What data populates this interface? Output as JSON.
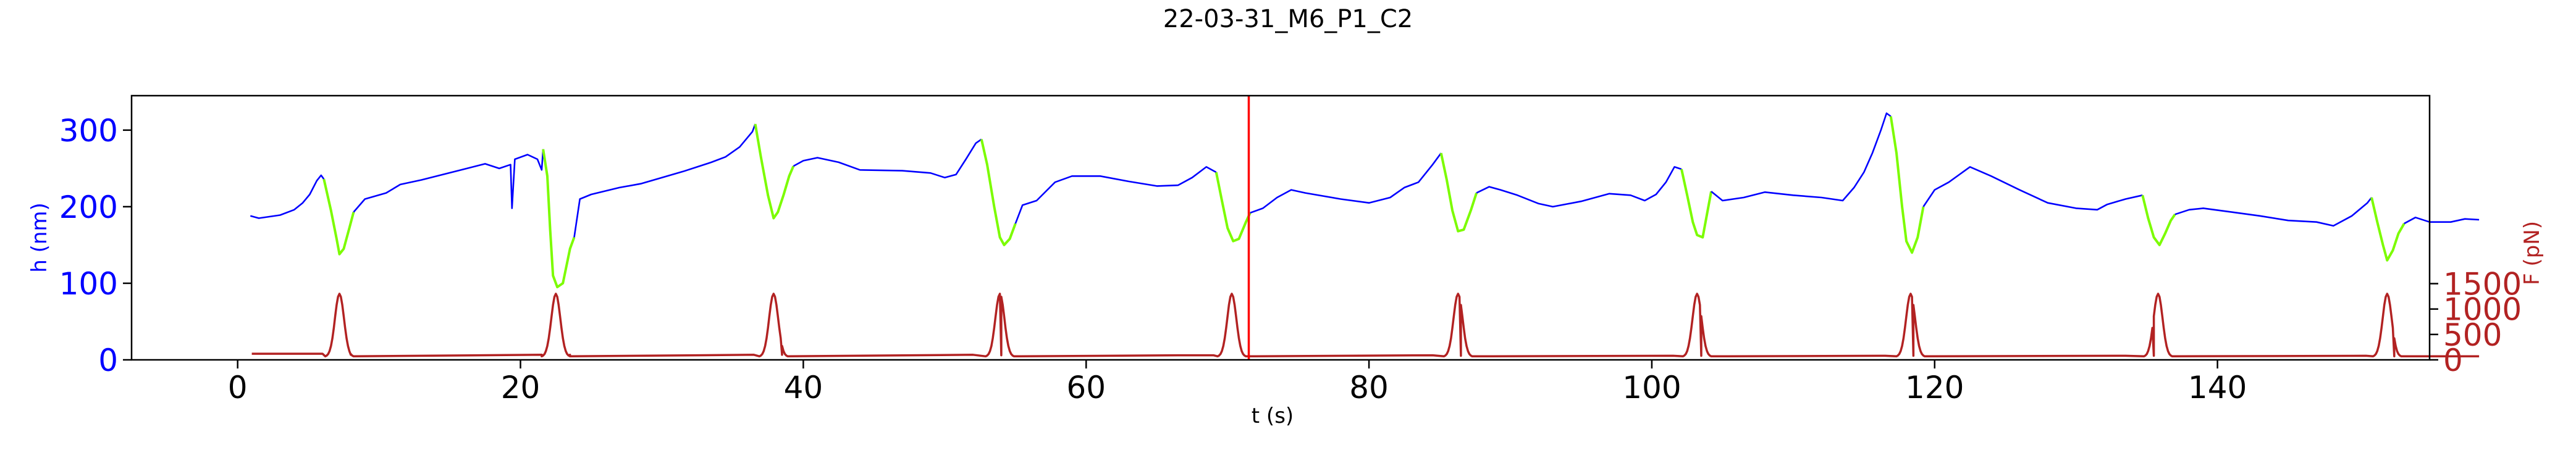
{
  "chart_data": {
    "type": "line",
    "title": "22-03-31_M6_P1_C2",
    "xlabel": "t (s)",
    "ylabel_left": "h (nm)",
    "ylabel_right": "F (pN)",
    "xlim": [
      -7.5,
      155
    ],
    "ylim_left": [
      0,
      345
    ],
    "ylim_right": [
      0,
      5200
    ],
    "xticks": [
      0,
      20,
      40,
      60,
      80,
      100,
      120,
      140
    ],
    "yticks_left": [
      0,
      100,
      200,
      300
    ],
    "yticks_right": [
      0,
      500,
      1000,
      1500
    ],
    "grid": false,
    "vline_x": 71.5,
    "colors": {
      "height_low_force": "#0000ff",
      "height_high_force": "#7cfc00",
      "force": "#b22222",
      "vline": "#ff0000",
      "left_axis": "#0000ff",
      "right_axis": "#b22222"
    },
    "height_segments": [
      {
        "phase": "low",
        "points": [
          [
            0.9,
            188
          ],
          [
            1.5,
            185
          ],
          [
            3,
            189
          ],
          [
            4,
            196
          ],
          [
            4.6,
            205
          ],
          [
            5.1,
            216
          ],
          [
            5.6,
            234
          ],
          [
            5.9,
            241
          ],
          [
            6.1,
            236
          ]
        ]
      },
      {
        "phase": "high",
        "points": [
          [
            6.1,
            236
          ],
          [
            6.6,
            195
          ],
          [
            7.0,
            158
          ],
          [
            7.2,
            138
          ],
          [
            7.5,
            145
          ],
          [
            7.9,
            172
          ],
          [
            8.2,
            193
          ]
        ]
      },
      {
        "phase": "low",
        "points": [
          [
            8.2,
            193
          ],
          [
            9,
            210
          ],
          [
            10.5,
            218
          ],
          [
            11.5,
            229
          ],
          [
            13,
            235
          ],
          [
            16,
            249
          ],
          [
            17.5,
            256
          ],
          [
            18.5,
            250
          ],
          [
            19.3,
            255
          ],
          [
            19.4,
            198
          ],
          [
            19.6,
            262
          ],
          [
            20.5,
            268
          ],
          [
            21.2,
            262
          ],
          [
            21.5,
            248
          ],
          [
            21.6,
            275
          ]
        ]
      },
      {
        "phase": "high",
        "points": [
          [
            21.6,
            275
          ],
          [
            21.9,
            240
          ],
          [
            22.1,
            170
          ],
          [
            22.3,
            110
          ],
          [
            22.6,
            95
          ],
          [
            23.0,
            100
          ],
          [
            23.5,
            145
          ],
          [
            23.8,
            160
          ]
        ]
      },
      {
        "phase": "low",
        "points": [
          [
            23.8,
            160
          ],
          [
            24.2,
            210
          ],
          [
            25,
            216
          ],
          [
            27,
            225
          ],
          [
            28.5,
            230
          ],
          [
            30,
            238
          ],
          [
            31.5,
            246
          ],
          [
            32.5,
            252
          ],
          [
            33.5,
            258
          ],
          [
            34.5,
            265
          ],
          [
            35.5,
            278
          ],
          [
            36.4,
            298
          ],
          [
            36.6,
            308
          ]
        ]
      },
      {
        "phase": "high",
        "points": [
          [
            36.6,
            308
          ],
          [
            37.0,
            265
          ],
          [
            37.5,
            215
          ],
          [
            37.9,
            185
          ],
          [
            38.2,
            193
          ],
          [
            38.6,
            215
          ],
          [
            39.0,
            240
          ],
          [
            39.3,
            253
          ]
        ]
      },
      {
        "phase": "low",
        "points": [
          [
            39.3,
            253
          ],
          [
            40,
            260
          ],
          [
            41,
            264
          ],
          [
            42.5,
            258
          ],
          [
            44,
            248
          ],
          [
            47,
            247
          ],
          [
            49,
            244
          ],
          [
            50,
            238
          ],
          [
            50.8,
            242
          ],
          [
            51.5,
            262
          ],
          [
            52.2,
            283
          ],
          [
            52.6,
            288
          ]
        ]
      },
      {
        "phase": "high",
        "points": [
          [
            52.6,
            288
          ],
          [
            53.0,
            255
          ],
          [
            53.5,
            200
          ],
          [
            53.9,
            160
          ],
          [
            54.2,
            150
          ],
          [
            54.6,
            158
          ],
          [
            55.0,
            178
          ]
        ]
      },
      {
        "phase": "low",
        "points": [
          [
            55.0,
            178
          ],
          [
            55.5,
            202
          ],
          [
            56.5,
            208
          ],
          [
            57.8,
            232
          ],
          [
            59,
            240
          ],
          [
            61,
            240
          ],
          [
            63,
            233
          ],
          [
            65,
            227
          ],
          [
            66.5,
            228
          ],
          [
            67.5,
            238
          ],
          [
            68.5,
            252
          ],
          [
            69.2,
            245
          ]
        ]
      },
      {
        "phase": "high",
        "points": [
          [
            69.2,
            245
          ],
          [
            69.6,
            208
          ],
          [
            70.0,
            172
          ],
          [
            70.4,
            155
          ],
          [
            70.8,
            158
          ],
          [
            71.3,
            180
          ],
          [
            71.6,
            192
          ]
        ]
      },
      {
        "phase": "low",
        "points": [
          [
            71.6,
            192
          ],
          [
            72.5,
            198
          ],
          [
            73.5,
            212
          ],
          [
            74.5,
            222
          ],
          [
            75.5,
            218
          ],
          [
            78,
            210
          ],
          [
            80,
            205
          ],
          [
            81.5,
            212
          ],
          [
            82.5,
            225
          ],
          [
            83.5,
            232
          ],
          [
            84.5,
            255
          ],
          [
            85.1,
            270
          ]
        ]
      },
      {
        "phase": "high",
        "points": [
          [
            85.1,
            270
          ],
          [
            85.5,
            235
          ],
          [
            85.9,
            195
          ],
          [
            86.3,
            168
          ],
          [
            86.7,
            170
          ],
          [
            87.2,
            195
          ],
          [
            87.6,
            218
          ]
        ]
      },
      {
        "phase": "low",
        "points": [
          [
            87.6,
            218
          ],
          [
            88.5,
            226
          ],
          [
            89.3,
            222
          ],
          [
            90.5,
            215
          ],
          [
            92,
            204
          ],
          [
            93,
            200
          ],
          [
            95,
            207
          ],
          [
            97,
            217
          ],
          [
            98.5,
            215
          ],
          [
            99.5,
            208
          ],
          [
            100.3,
            216
          ],
          [
            101,
            232
          ],
          [
            101.6,
            252
          ],
          [
            102.1,
            249
          ]
        ]
      },
      {
        "phase": "high",
        "points": [
          [
            102.1,
            249
          ],
          [
            102.5,
            215
          ],
          [
            102.9,
            180
          ],
          [
            103.2,
            163
          ],
          [
            103.6,
            160
          ],
          [
            103.9,
            190
          ],
          [
            104.2,
            220
          ]
        ]
      },
      {
        "phase": "low",
        "points": [
          [
            104.2,
            220
          ],
          [
            105,
            208
          ],
          [
            106.5,
            212
          ],
          [
            108,
            219
          ],
          [
            110,
            215
          ],
          [
            112,
            212
          ],
          [
            113.5,
            208
          ],
          [
            114.3,
            225
          ],
          [
            115,
            245
          ],
          [
            115.6,
            270
          ],
          [
            116.2,
            300
          ],
          [
            116.6,
            322
          ],
          [
            116.9,
            318
          ]
        ]
      },
      {
        "phase": "high",
        "points": [
          [
            116.9,
            318
          ],
          [
            117.3,
            270
          ],
          [
            117.7,
            200
          ],
          [
            118.0,
            155
          ],
          [
            118.4,
            140
          ],
          [
            118.8,
            160
          ],
          [
            119.2,
            200
          ]
        ]
      },
      {
        "phase": "low",
        "points": [
          [
            119.2,
            200
          ],
          [
            120,
            222
          ],
          [
            121,
            232
          ],
          [
            122.5,
            252
          ],
          [
            124,
            240
          ],
          [
            126,
            222
          ],
          [
            128,
            205
          ],
          [
            130,
            198
          ],
          [
            131.5,
            196
          ],
          [
            132.2,
            203
          ],
          [
            133.5,
            210
          ],
          [
            134.7,
            215
          ]
        ]
      },
      {
        "phase": "high",
        "points": [
          [
            134.7,
            215
          ],
          [
            135.1,
            185
          ],
          [
            135.5,
            160
          ],
          [
            135.9,
            150
          ],
          [
            136.3,
            165
          ],
          [
            136.7,
            182
          ],
          [
            137.0,
            190
          ]
        ]
      },
      {
        "phase": "low",
        "points": [
          [
            137.0,
            190
          ],
          [
            138,
            196
          ],
          [
            139,
            198
          ],
          [
            141,
            193
          ],
          [
            143,
            188
          ],
          [
            145,
            182
          ],
          [
            147,
            180
          ],
          [
            148.2,
            175
          ],
          [
            149.5,
            188
          ],
          [
            150.6,
            205
          ],
          [
            150.9,
            212
          ]
        ]
      },
      {
        "phase": "high",
        "points": [
          [
            150.9,
            212
          ],
          [
            151.3,
            180
          ],
          [
            151.7,
            150
          ],
          [
            152.0,
            130
          ],
          [
            152.4,
            143
          ],
          [
            152.8,
            165
          ],
          [
            153.2,
            178
          ]
        ]
      },
      {
        "phase": "low",
        "points": [
          [
            153.2,
            178
          ],
          [
            154,
            186
          ],
          [
            155,
            180
          ],
          [
            156.5,
            180
          ],
          [
            157.5,
            184
          ],
          [
            158.5,
            183
          ]
        ]
      }
    ],
    "force_baseline": [
      {
        "x0": 1.0,
        "x1": 6.0,
        "value": 120
      },
      {
        "x0": 8.0,
        "x1": 21.5,
        "value": 100
      },
      {
        "x0": 23.5,
        "x1": 36.5,
        "value": 100
      },
      {
        "x0": 38.5,
        "x1": 52.0,
        "value": 100
      },
      {
        "x0": 54.0,
        "x1": 67.0,
        "value": 90
      },
      {
        "x0": 69.0,
        "x1": 84.5,
        "value": 90
      },
      {
        "x0": 86.5,
        "x1": 101.5,
        "value": 80
      },
      {
        "x0": 103.5,
        "x1": 116.5,
        "value": 80
      },
      {
        "x0": 118.5,
        "x1": 133.5,
        "value": 80
      },
      {
        "x0": 135.5,
        "x1": 150.5,
        "value": 80
      },
      {
        "x0": 152.5,
        "x1": 158.5,
        "value": 70
      }
    ],
    "force_peaks": [
      {
        "x": 7.2,
        "value": 1300
      },
      {
        "x": 22.5,
        "value": 1300
      },
      {
        "x": 37.9,
        "value": 1300
      },
      {
        "x": 53.9,
        "value": 1300
      },
      {
        "x": 70.3,
        "value": 1300
      },
      {
        "x": 86.3,
        "value": 1300
      },
      {
        "x": 103.2,
        "value": 1300
      },
      {
        "x": 118.3,
        "value": 1300
      },
      {
        "x": 135.8,
        "value": 1300
      },
      {
        "x": 152.0,
        "value": 1300
      }
    ]
  }
}
